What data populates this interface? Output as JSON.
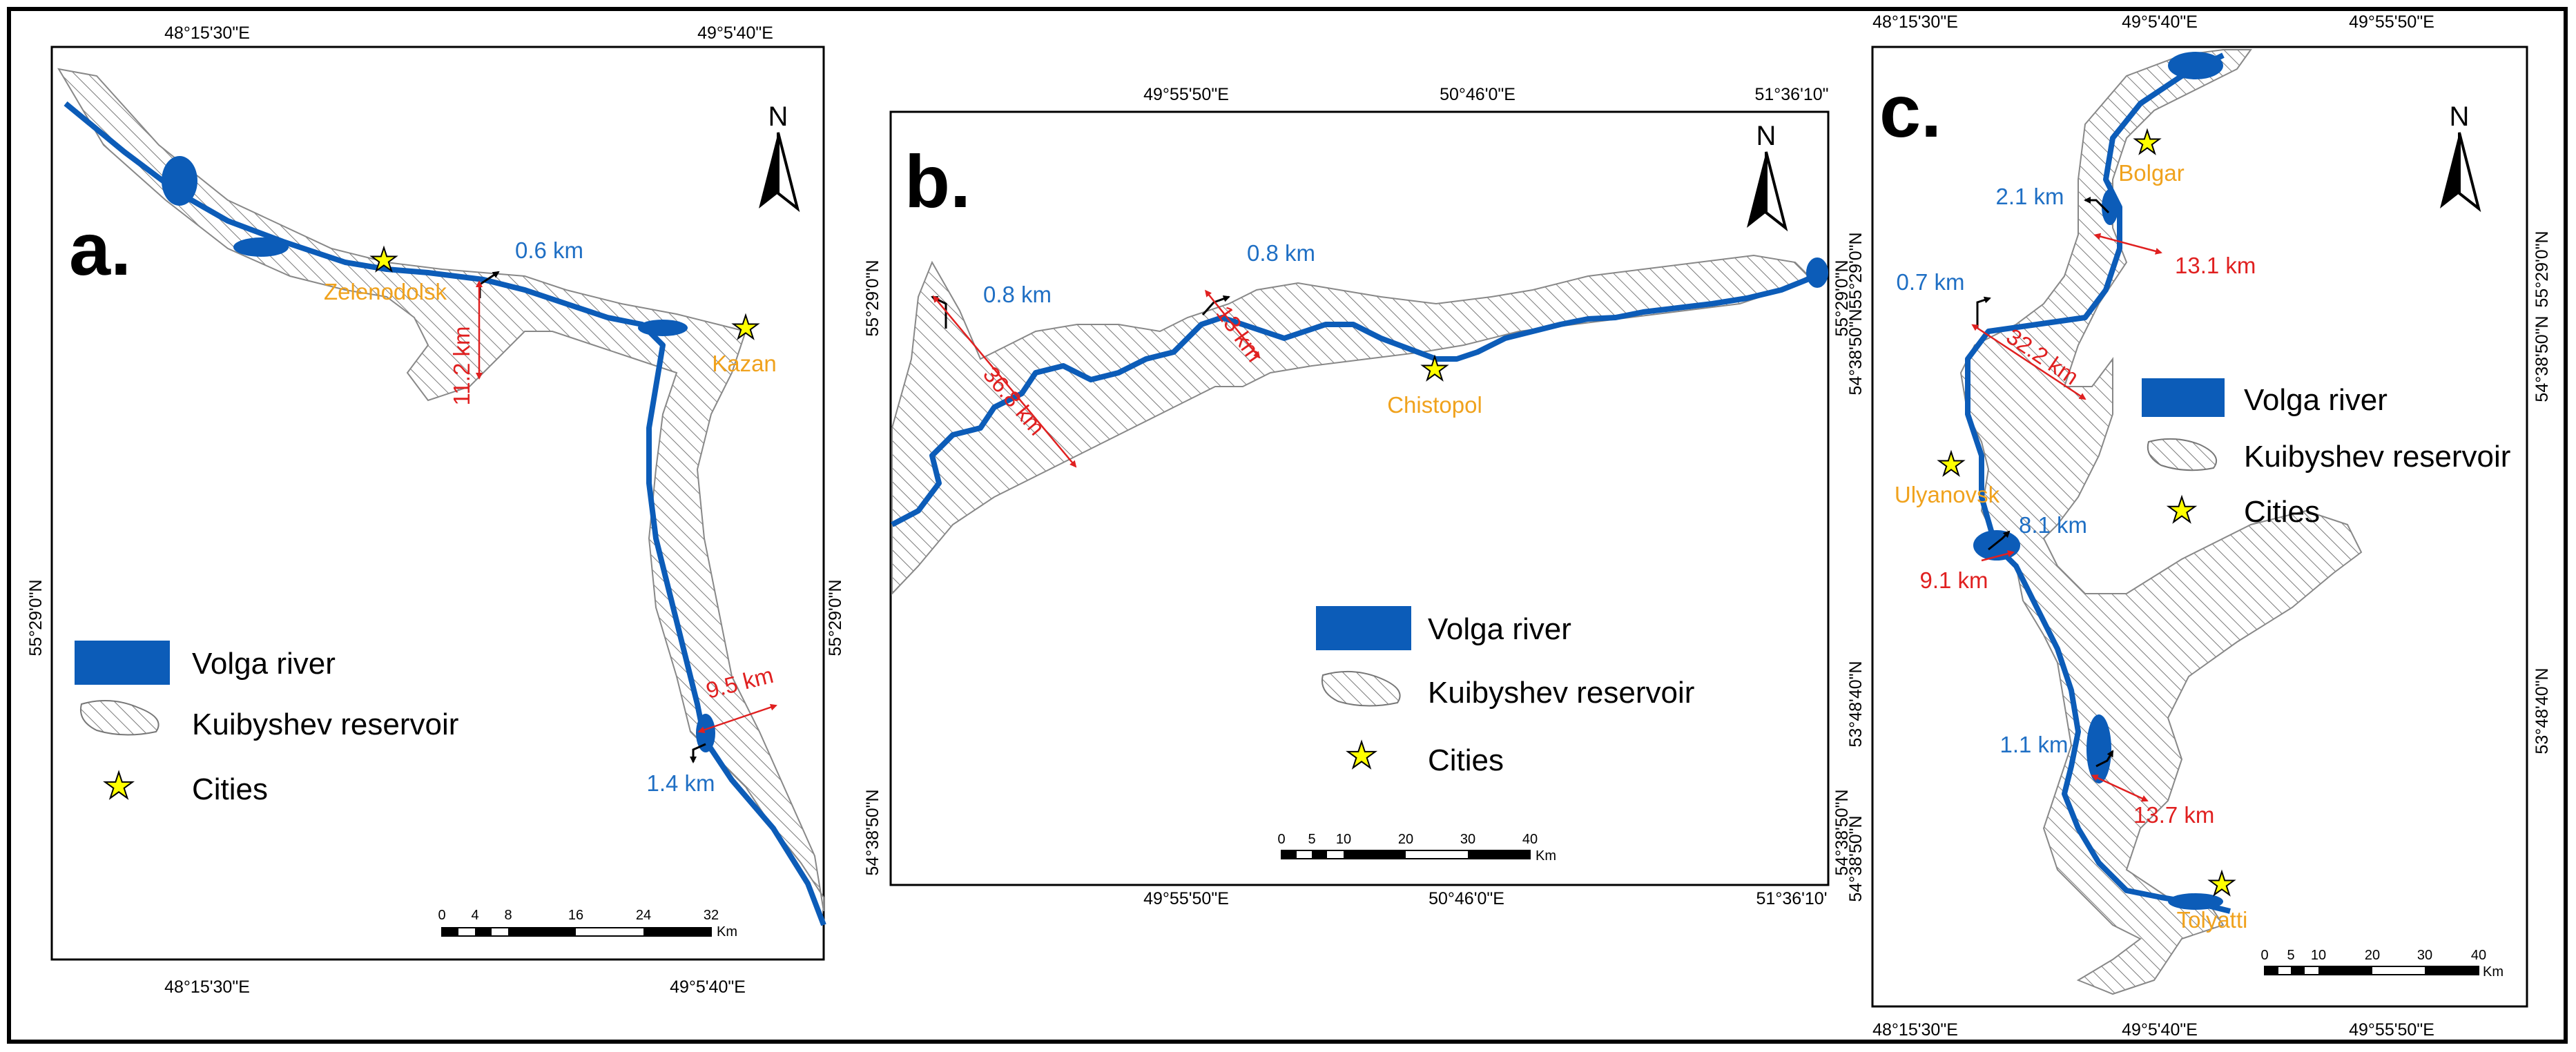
{
  "colors": {
    "river": "#0c5cb8",
    "city_star": "#ffff00",
    "city_label": "#f0a21d",
    "width_label": "#1f6fc4",
    "length_label": "#e02020",
    "hatch": "#777777"
  },
  "legend": {
    "river_label": "Volga river",
    "reservoir_label": "Kuibyshev reservoir",
    "cities_label": "Cities"
  },
  "north": "N",
  "scale_unit": "Km",
  "panel_a": {
    "letter": "a.",
    "top_coords": [
      "48°15'30\"E",
      "49°5'40\"E"
    ],
    "bottom_coords": [
      "48°15'30\"E",
      "49°5'40\"E"
    ],
    "left_coords": [
      "55°29'0\"N"
    ],
    "right_coords": [
      "55°29'0\"N"
    ],
    "cities": [
      "Zelenodolsk",
      "Kazan"
    ],
    "widths": [
      "0.6 km",
      "1.4 km"
    ],
    "lengths": [
      "11.2 km",
      "9.5 km"
    ],
    "scale_ticks": [
      "0",
      "4",
      "8",
      "16",
      "24",
      "32"
    ]
  },
  "panel_b": {
    "letter": "b.",
    "top_coords": [
      "49°55'50\"E",
      "50°46'0\"E",
      "51°36'10\""
    ],
    "bottom_coords": [
      "49°55'50\"E",
      "50°46'0\"E",
      "51°36'10'"
    ],
    "left_coords": [
      "55°29'0\"N",
      "54°38'50\"N"
    ],
    "right_coords": [
      "55°29'0\"N",
      "54°38'50\"N"
    ],
    "cities": [
      "Chistopol"
    ],
    "widths": [
      "0.8 km",
      "0.8 km"
    ],
    "lengths": [
      "36.8 km",
      "13 km"
    ],
    "scale_ticks": [
      "0",
      "5",
      "10",
      "20",
      "30",
      "40"
    ]
  },
  "panel_c": {
    "letter": "c.",
    "top_coords": [
      "48°15'30\"E",
      "49°5'40\"E",
      "49°55'50\"E"
    ],
    "bottom_coords": [
      "48°15'30\"E",
      "49°5'40\"E",
      "49°55'50\"E"
    ],
    "left_coords": [
      "55°29'0\"N",
      "54°38'50\"N",
      "53°48'40\"N",
      "54°38'50\"N"
    ],
    "right_coords": [
      "55°29'0\"N",
      "54°38'50\"N",
      "53°48'40\"N"
    ],
    "cities": [
      "Bolgar",
      "Ulyanovsk",
      "Tolyatti"
    ],
    "widths": [
      "2.1 km",
      "0.7 km",
      "8.1 km",
      "1.1 km"
    ],
    "lengths": [
      "13.1 km",
      "32.2 km",
      "9.1 km",
      "13.7 km"
    ],
    "scale_ticks": [
      "0",
      "5",
      "10",
      "20",
      "30",
      "40"
    ]
  }
}
